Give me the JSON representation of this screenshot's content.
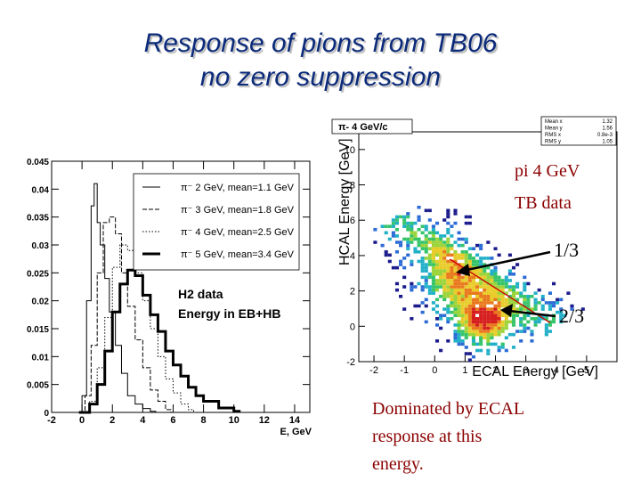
{
  "slide": {
    "title_line1": "Response of pions from TB06",
    "title_line2": "no zero suppression",
    "caption_lines": [
      "Dominated by ECAL",
      "response at this",
      "energy."
    ]
  },
  "chart_data": [
    {
      "type": "line",
      "xlabel": "E, GeV",
      "xlim": [
        -2,
        15
      ],
      "ylim": [
        0,
        0.045
      ],
      "x_ticks": [
        -2,
        0,
        2,
        4,
        6,
        8,
        10,
        12,
        14
      ],
      "y_ticks": [
        0,
        0.005,
        0.01,
        0.015,
        0.02,
        0.025,
        0.03,
        0.035,
        0.04,
        0.045
      ],
      "y_tick_labels": [
        "0",
        "0.005",
        "0.01",
        "0.015",
        "0.02",
        "0.025",
        "0.03",
        "0.035",
        "0.04",
        "0.045"
      ],
      "x_tick_labels": [
        "-2",
        "0",
        "2",
        "4",
        "6",
        "8",
        "10",
        "12",
        "14"
      ],
      "legend_position": "top-right",
      "annotations": [
        "H2 data",
        "Energy in EB+HB"
      ],
      "series": [
        {
          "name": "π⁻ 2 GeV, mean=1.1 GeV",
          "style": "solid-thin",
          "color": "#000000",
          "x": [
            -0.8,
            0,
            0.3,
            0.6,
            0.8,
            1.0,
            1.2,
            1.5,
            1.8,
            2.2,
            2.6,
            3.0,
            3.5,
            4.0,
            4.5
          ],
          "y": [
            0.0,
            0.003,
            0.02,
            0.037,
            0.041,
            0.034,
            0.03,
            0.024,
            0.018,
            0.012,
            0.007,
            0.003,
            0.0015,
            0.0007,
            0.0002
          ]
        },
        {
          "name": "π⁻ 3 GeV, mean=1.8 GeV",
          "style": "dashed",
          "color": "#000000",
          "x": [
            -0.5,
            0.2,
            0.6,
            1.0,
            1.4,
            1.8,
            2.2,
            2.6,
            3.0,
            3.5,
            4.0,
            4.5,
            5.0,
            5.5
          ],
          "y": [
            0.0,
            0.003,
            0.012,
            0.025,
            0.034,
            0.035,
            0.032,
            0.025,
            0.019,
            0.013,
            0.008,
            0.004,
            0.002,
            0.0005
          ]
        },
        {
          "name": "π⁻ 4 GeV, mean=2.5 GeV",
          "style": "dotted",
          "color": "#000000",
          "x": [
            -0.3,
            0.5,
            1.0,
            1.5,
            2.0,
            2.5,
            3.0,
            3.5,
            4.0,
            4.5,
            5.0,
            5.5,
            6.0,
            6.5,
            7.0
          ],
          "y": [
            0.0,
            0.002,
            0.008,
            0.017,
            0.026,
            0.03,
            0.029,
            0.025,
            0.02,
            0.015,
            0.01,
            0.006,
            0.0035,
            0.0015,
            0.0005
          ]
        },
        {
          "name": "π⁻ 5 GeV, mean=3.4 GeV",
          "style": "solid-thick",
          "color": "#000000",
          "x": [
            -0.2,
            0.5,
            1.0,
            1.5,
            2.0,
            2.5,
            3.0,
            3.5,
            4.0,
            4.5,
            5.0,
            5.5,
            6.0,
            6.5,
            7.0,
            7.5,
            8.0,
            9.0,
            10.0
          ],
          "y": [
            0.0,
            0.0015,
            0.005,
            0.011,
            0.018,
            0.023,
            0.0255,
            0.0245,
            0.021,
            0.0175,
            0.0145,
            0.011,
            0.0085,
            0.0065,
            0.0045,
            0.003,
            0.002,
            0.0008,
            0.0002
          ]
        }
      ]
    },
    {
      "type": "scatter",
      "title": "π- 4 GeV/c",
      "xlabel": "ECAL Energy [GeV]",
      "ylabel": "HCAL Energy [GeV]",
      "xlim": [
        -2.5,
        6
      ],
      "ylim": [
        -2,
        11
      ],
      "x_ticks": [
        -2,
        -1,
        0,
        1,
        2,
        3,
        4,
        5
      ],
      "y_ticks": [
        -2,
        0,
        2,
        4,
        6,
        8,
        10
      ],
      "x_tick_labels": [
        "-2",
        "-1",
        "0",
        "1",
        "2",
        "3",
        "4",
        "5"
      ],
      "y_tick_labels": [
        "-2",
        "0",
        "2",
        "4",
        "6",
        "8",
        "10"
      ],
      "stats_box": {
        "labels": [
          "Mean x",
          "Mean y",
          "RMS x",
          "RMS y"
        ],
        "values": [
          "1.32",
          "1.56",
          "0.8e-3",
          "1.05"
        ]
      },
      "reference_line": {
        "x": [
          0.5,
          3.8
        ],
        "y": [
          3.8,
          0.2
        ],
        "color": "#cc0000"
      },
      "density_clusters": [
        {
          "x": 1.6,
          "y": 0.3,
          "weight": 1.0
        },
        {
          "x": 0.6,
          "y": 2.2,
          "weight": 0.6
        },
        {
          "x": 0.2,
          "y": 4.0,
          "weight": 0.25
        }
      ],
      "overlay_labels": [
        "pi 4 GeV",
        "TB data",
        "1/3",
        "2/3"
      ]
    }
  ]
}
